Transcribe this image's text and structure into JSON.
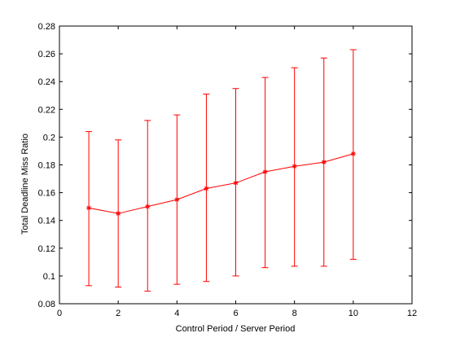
{
  "chart_data": {
    "type": "line",
    "xlabel": "Control Period / Server Period",
    "ylabel": "Total Deadline Miss Ratio",
    "xlim": [
      0,
      12
    ],
    "ylim": [
      0.08,
      0.28
    ],
    "xticks": [
      "0",
      "2",
      "4",
      "6",
      "8",
      "10",
      "12"
    ],
    "yticks": [
      "0.08",
      "0.1",
      "0.12",
      "0.14",
      "0.16",
      "0.18",
      "0.2",
      "0.22",
      "0.24",
      "0.26",
      "0.28"
    ],
    "grid": false,
    "legend": "none",
    "color": "#ff0000",
    "marker": "asterisk",
    "series": [
      {
        "x": [
          1,
          2,
          3,
          4,
          5,
          6,
          7,
          8,
          9,
          10
        ],
        "y": [
          0.149,
          0.145,
          0.15,
          0.155,
          0.163,
          0.167,
          0.175,
          0.179,
          0.182,
          0.188
        ],
        "y_lower": [
          0.093,
          0.092,
          0.089,
          0.094,
          0.096,
          0.1,
          0.106,
          0.107,
          0.107,
          0.112
        ],
        "y_upper": [
          0.204,
          0.198,
          0.212,
          0.216,
          0.231,
          0.235,
          0.243,
          0.25,
          0.257,
          0.263
        ]
      }
    ]
  }
}
